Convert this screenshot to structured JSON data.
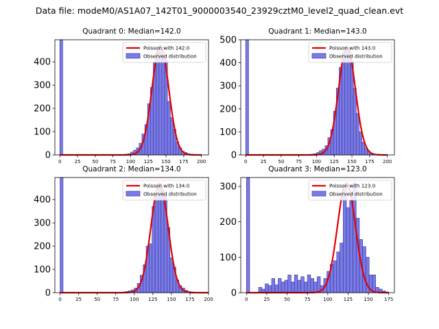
{
  "figure_title": "Data file: modeM0/AS1A07_142T01_9000003540_23929cztM0_level2_quad_clean.evt",
  "chart_data": [
    {
      "type": "bar",
      "title": "Quadrant 0: Median=142.0",
      "median": 142.0,
      "xlim": [
        -7,
        210
      ],
      "ylim": [
        0,
        495
      ],
      "xticks": [
        0,
        25,
        50,
        75,
        100,
        125,
        150,
        175,
        200
      ],
      "yticks": [
        0,
        100,
        200,
        300,
        400
      ],
      "bin_width": 4,
      "bin_starts": [
        0,
        92,
        96,
        100,
        104,
        108,
        112,
        116,
        120,
        124,
        128,
        132,
        136,
        140,
        144,
        148,
        152,
        156,
        160,
        164,
        168,
        172,
        176,
        180,
        184,
        188,
        192,
        196
      ],
      "counts": [
        495,
        3,
        5,
        12,
        20,
        30,
        50,
        90,
        130,
        220,
        290,
        400,
        440,
        470,
        430,
        410,
        230,
        160,
        110,
        55,
        30,
        15,
        10,
        5,
        3,
        2,
        1,
        1
      ],
      "poisson_label": "Poisson with 142.0",
      "observed_label": "Observed distribution",
      "peak": 470
    },
    {
      "type": "bar",
      "title": "Quadrant 1: Median=143.0",
      "median": 143.0,
      "xlim": [
        -7,
        210
      ],
      "ylim": [
        0,
        500
      ],
      "xticks": [
        0,
        25,
        50,
        75,
        100,
        125,
        150,
        175,
        200
      ],
      "yticks": [
        0,
        100,
        200,
        300,
        400,
        500
      ],
      "bin_width": 4,
      "bin_starts": [
        0,
        92,
        96,
        100,
        104,
        108,
        112,
        116,
        120,
        124,
        128,
        132,
        136,
        140,
        144,
        148,
        152,
        156,
        160,
        164,
        168,
        172,
        176,
        180,
        184,
        188,
        192,
        196
      ],
      "counts": [
        500,
        3,
        5,
        10,
        18,
        25,
        40,
        75,
        110,
        190,
        290,
        380,
        440,
        470,
        460,
        410,
        290,
        180,
        100,
        55,
        30,
        15,
        8,
        4,
        3,
        2,
        1,
        1
      ],
      "poisson_label": "Poisson with 143.0",
      "observed_label": "Observed distribution",
      "peak": 470
    },
    {
      "type": "bar",
      "title": "Quadrant 2: Median=134.0",
      "median": 134.0,
      "xlim": [
        -7,
        200
      ],
      "ylim": [
        0,
        495
      ],
      "xticks": [
        0,
        25,
        50,
        75,
        100,
        125,
        150,
        175,
        200
      ],
      "yticks": [
        0,
        100,
        200,
        300,
        400
      ],
      "bin_width": 4,
      "bin_starts": [
        0,
        84,
        88,
        92,
        96,
        100,
        104,
        108,
        112,
        116,
        120,
        124,
        128,
        132,
        136,
        140,
        144,
        148,
        152,
        156,
        160,
        164,
        168,
        172,
        176,
        180,
        184
      ],
      "counts": [
        495,
        3,
        5,
        8,
        12,
        20,
        40,
        75,
        120,
        200,
        210,
        370,
        420,
        470,
        440,
        420,
        280,
        150,
        110,
        55,
        30,
        20,
        10,
        5,
        3,
        2,
        1
      ],
      "poisson_label": "Poisson with 134.0",
      "observed_label": "Observed distribution",
      "peak": 470
    },
    {
      "type": "bar",
      "title": "Quadrant 3: Median=123.0",
      "median": 123.0,
      "xlim": [
        -7,
        182
      ],
      "ylim": [
        0,
        325
      ],
      "xticks": [
        0,
        25,
        50,
        75,
        100,
        125,
        150,
        175
      ],
      "yticks": [
        0,
        100,
        200,
        300
      ],
      "bin_width": 3.9,
      "bin_starts": [
        0,
        15,
        19,
        23,
        27,
        31,
        35,
        39,
        43,
        47,
        51,
        55,
        59,
        63,
        67,
        71,
        75,
        79,
        83,
        87,
        91,
        95,
        99,
        103,
        107,
        111,
        115,
        119,
        123,
        127,
        131,
        135,
        139,
        143,
        147,
        151,
        155,
        159,
        163,
        167,
        171
      ],
      "counts": [
        325,
        15,
        10,
        25,
        20,
        40,
        22,
        40,
        30,
        35,
        50,
        30,
        50,
        35,
        45,
        30,
        50,
        40,
        30,
        45,
        20,
        40,
        60,
        80,
        90,
        115,
        140,
        300,
        240,
        260,
        310,
        210,
        150,
        130,
        100,
        50,
        50,
        15,
        10,
        5,
        2
      ],
      "poisson_label": "Poisson with 123.0",
      "observed_label": "Observed distribution",
      "peak": 310
    }
  ]
}
